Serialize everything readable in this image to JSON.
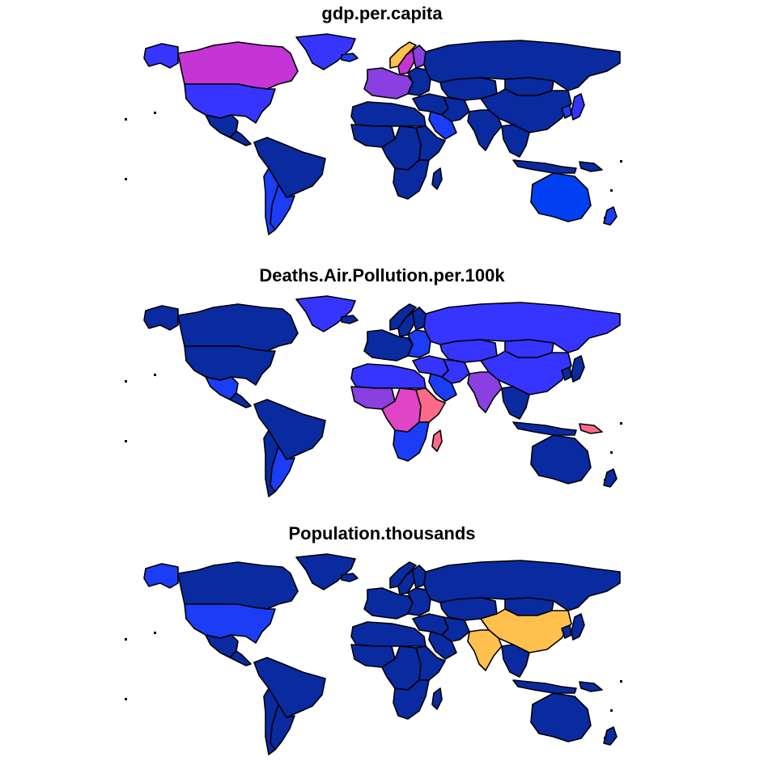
{
  "maps": [
    {
      "title": "gdp.per.capita",
      "colors": {
        "canada": "#c535d6",
        "usa": "#3535ff",
        "mexico": "#0a2aa0",
        "central_america": "#0a2aa0",
        "south_america": "#0a2aa0",
        "argentina": "#1a3df5",
        "chile": "#1a3df5",
        "greenland": "#3535ff",
        "iceland": "#1a3df5",
        "norway": "#ffc04d",
        "sweden": "#c535d6",
        "finland": "#8a3fe0",
        "western_europe": "#8a3fe0",
        "eastern_europe": "#0a2aa0",
        "russia": "#0a2aa0",
        "kazakhstan": "#0a2aa0",
        "mongolia": "#0a2aa0",
        "china": "#0a2aa0",
        "middle_east": "#0a2aa0",
        "saudi_arabia": "#1a3df5",
        "iran": "#0a2aa0",
        "india_region": "#0a2aa0",
        "southeast_asia": "#0a2aa0",
        "japan": "#3535ff",
        "korea": "#1a3df5",
        "africa_north": "#0a2aa0",
        "africa_west": "#0a2aa0",
        "africa_central": "#0a2aa0",
        "africa_east": "#0a2aa0",
        "africa_south": "#0a2aa0",
        "madagascar": "#0a2aa0",
        "indonesia": "#0a2aa0",
        "png": "#0a2aa0",
        "australia": "#0040f0",
        "new_zealand": "#1a3df5"
      }
    },
    {
      "title": "Deaths.Air.Pollution.per.100k",
      "colors": {
        "canada": "#0a2aa0",
        "usa": "#0a2aa0",
        "mexico": "#1a3df5",
        "central_america": "#0a2aa0",
        "south_america": "#0a2aa0",
        "argentina": "#1a3df5",
        "chile": "#0a2aa0",
        "greenland": "#3535ff",
        "iceland": "#0a2aa0",
        "norway": "#0a2aa0",
        "sweden": "#0a2aa0",
        "finland": "#0a2aa0",
        "western_europe": "#0a2aa0",
        "eastern_europe": "#1a3df5",
        "russia": "#3535ff",
        "kazakhstan": "#3535ff",
        "mongolia": "#3535ff",
        "china": "#3535ff",
        "middle_east": "#3535ff",
        "saudi_arabia": "#1a3df5",
        "iran": "#3535ff",
        "india_region": "#8a3fe0",
        "southeast_asia": "#0a2aa0",
        "japan": "#0a2aa0",
        "korea": "#0a2aa0",
        "africa_north": "#3535ff",
        "africa_west": "#8a3fe0",
        "africa_central": "#e045c8",
        "africa_east": "#ff6a8a",
        "africa_south": "#1a3df5",
        "madagascar": "#ff6a8a",
        "indonesia": "#0a2aa0",
        "png": "#ff6a8a",
        "australia": "#0a2aa0",
        "new_zealand": "#0a2aa0"
      }
    },
    {
      "title": "Population.thousands",
      "colors": {
        "canada": "#0a2aa0",
        "usa": "#1a3df5",
        "mexico": "#0a2aa0",
        "central_america": "#0a2aa0",
        "south_america": "#0a2aa0",
        "argentina": "#0a2aa0",
        "chile": "#0a2aa0",
        "greenland": "#0a2aa0",
        "iceland": "#0a2aa0",
        "norway": "#0a2aa0",
        "sweden": "#0a2aa0",
        "finland": "#0a2aa0",
        "western_europe": "#0a2aa0",
        "eastern_europe": "#0a2aa0",
        "russia": "#0a2aa0",
        "kazakhstan": "#0a2aa0",
        "mongolia": "#0a2aa0",
        "china": "#ffc04d",
        "middle_east": "#0a2aa0",
        "saudi_arabia": "#0a2aa0",
        "iran": "#0a2aa0",
        "india_region": "#ffc04d",
        "southeast_asia": "#0a2aa0",
        "japan": "#0a2aa0",
        "korea": "#0a2aa0",
        "africa_north": "#0a2aa0",
        "africa_west": "#0a2aa0",
        "africa_central": "#0a2aa0",
        "africa_east": "#0a2aa0",
        "africa_south": "#0a2aa0",
        "madagascar": "#0a2aa0",
        "indonesia": "#0a2aa0",
        "png": "#0a2aa0",
        "australia": "#0a2aa0",
        "new_zealand": "#0a2aa0"
      }
    }
  ]
}
